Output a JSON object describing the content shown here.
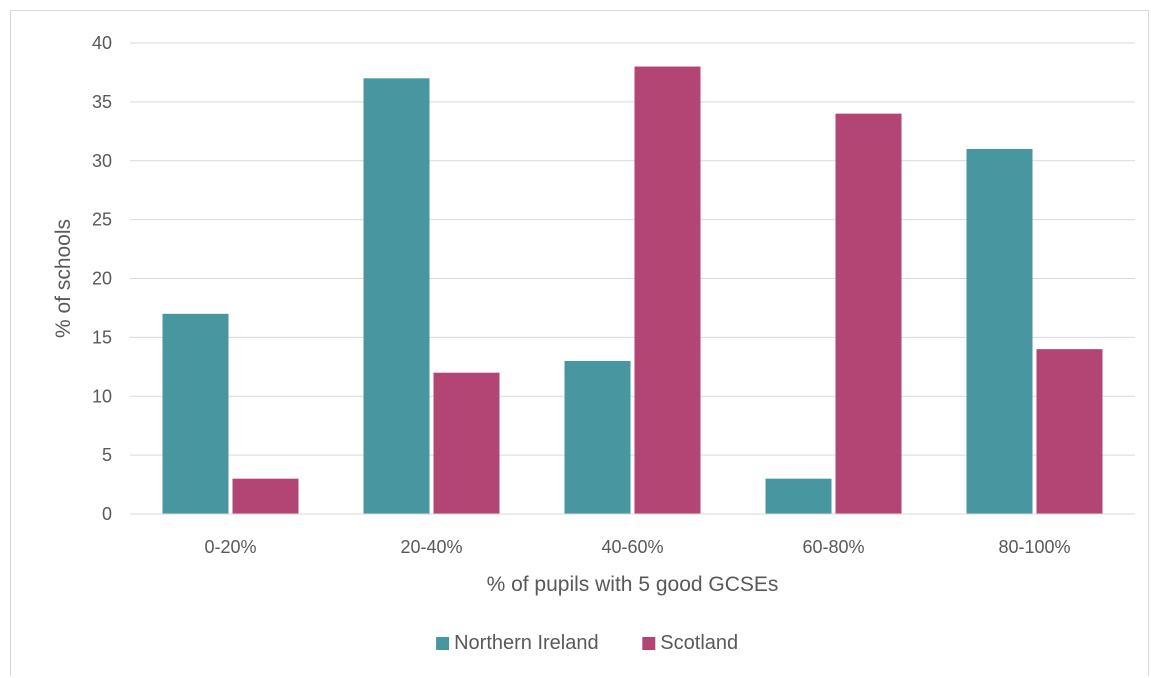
{
  "chart_data": {
    "type": "bar",
    "title": "",
    "xlabel": "% of pupils with 5 good GCSEs",
    "ylabel": "% of schools",
    "categories": [
      "0-20%",
      "20-40%",
      "40-60%",
      "60-80%",
      "80-100%"
    ],
    "series": [
      {
        "name": "Northern Ireland",
        "color": "#4896a0",
        "values": [
          17,
          37,
          13,
          3,
          31
        ]
      },
      {
        "name": "Scotland",
        "color": "#b34574",
        "values": [
          3,
          12,
          38,
          34,
          14
        ]
      }
    ],
    "ylim": [
      0,
      40
    ],
    "yticks": [
      0,
      5,
      10,
      15,
      20,
      25,
      30,
      35,
      40
    ],
    "grid": true,
    "legend_position": "bottom-center",
    "gridline_color": "#d9d9d9"
  }
}
